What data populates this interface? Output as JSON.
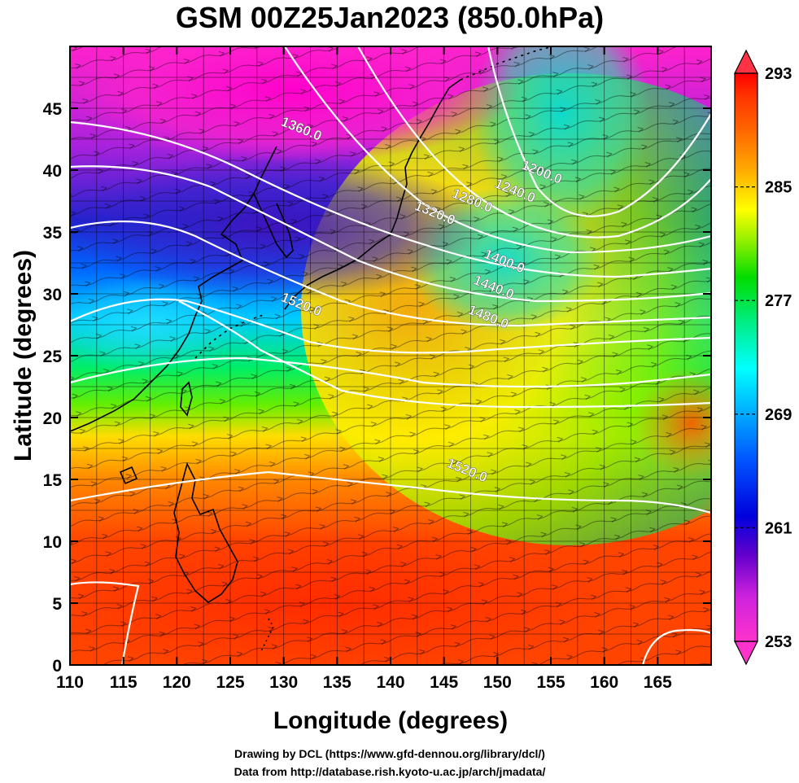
{
  "title": "GSM 00Z25Jan2023 (850.0hPa)",
  "x_axis": {
    "label": "Longitude (degrees)",
    "ticks": [
      "110",
      "115",
      "120",
      "125",
      "130",
      "135",
      "140",
      "145",
      "150",
      "155",
      "160",
      "165"
    ],
    "range": [
      110,
      170
    ]
  },
  "y_axis": {
    "label": "Latitude  (degrees)",
    "ticks": [
      "0",
      "5",
      "10",
      "15",
      "20",
      "25",
      "30",
      "35",
      "40",
      "45"
    ],
    "range": [
      0,
      50
    ]
  },
  "colorbar": {
    "labels": [
      "293",
      "285",
      "277",
      "269",
      "261",
      "253"
    ],
    "range": [
      253,
      293
    ],
    "colors": [
      "#ff33cc",
      "#cc22dd",
      "#6600cc",
      "#0000dd",
      "#0055ff",
      "#00aaff",
      "#00ffff",
      "#00ee88",
      "#00dd00",
      "#88ee00",
      "#ffff00",
      "#ffaa00",
      "#ff6600",
      "#ff3300",
      "#ff0000"
    ]
  },
  "contours": [
    {
      "label": "1200.0",
      "lon": 154,
      "lat": 39.5
    },
    {
      "label": "1240.0",
      "lon": 151.5,
      "lat": 38
    },
    {
      "label": "1280.0",
      "lon": 147.5,
      "lat": 37.2
    },
    {
      "label": "1320.0",
      "lon": 144,
      "lat": 36.2
    },
    {
      "label": "1360.0",
      "lon": 131.5,
      "lat": 43
    },
    {
      "label": "1400.0",
      "lon": 150.5,
      "lat": 32.3
    },
    {
      "label": "1440.0",
      "lon": 149.5,
      "lat": 30.2
    },
    {
      "label": "1480.0",
      "lon": 149,
      "lat": 27.8
    },
    {
      "label": "1520.0",
      "lon": 131.5,
      "lat": 28.8
    },
    {
      "label": "1520.0",
      "lon": 147,
      "lat": 15.4
    }
  ],
  "credits": [
    "Drawing by DCL (https://www.gfd-dennou.org/library/dcl/)",
    "Data from http://database.rish.kyoto-u.ac.jp/arch/jmadata/"
  ]
}
